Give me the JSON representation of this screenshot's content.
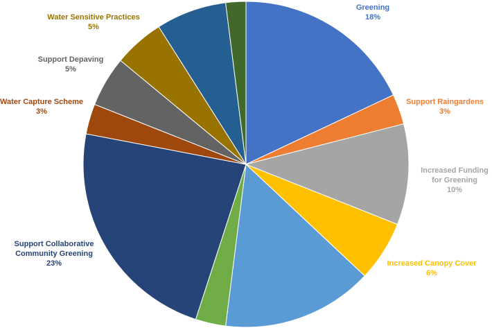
{
  "chart_data": {
    "type": "pie",
    "categories": [
      "Greening",
      "Support Raingardens",
      "Increased Funding for Greening",
      "Increased Canopy Cover",
      null,
      null,
      "Support Collaborative Community Greening",
      "Water Capture Scheme",
      "Support Depaving",
      "Water Sensitive Practices",
      null,
      null
    ],
    "values": [
      18,
      3,
      10,
      6,
      15,
      3,
      23,
      3,
      5,
      5,
      7,
      2
    ],
    "value_labels": [
      "18%",
      "3%",
      "10%",
      "6%",
      null,
      null,
      "23%",
      "3%",
      "5%",
      "5%",
      null,
      null
    ],
    "colors": [
      "#4472c4",
      "#ed7d31",
      "#a5a5a5",
      "#ffc000",
      "#5b9bd5",
      "#70ad47",
      "#264478",
      "#9e480e",
      "#636363",
      "#997300",
      "#255e91",
      "#43682b"
    ]
  }
}
